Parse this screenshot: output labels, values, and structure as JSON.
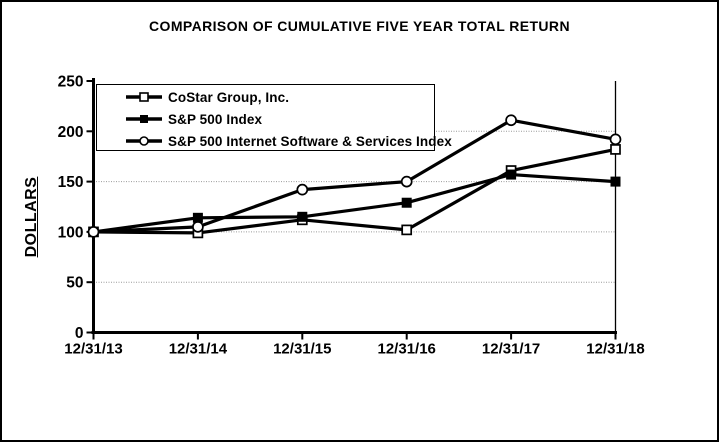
{
  "title": "COMPARISON OF CUMULATIVE FIVE YEAR TOTAL RETURN",
  "colors": {
    "line": "#000000",
    "grid": "#9a9a9a",
    "background": "#ffffff",
    "text": "#000000"
  },
  "chart_data": {
    "type": "line",
    "title": "COMPARISON OF CUMULATIVE FIVE YEAR TOTAL RETURN",
    "xlabel": "",
    "ylabel": "DOLLARS",
    "x": [
      "12/31/13",
      "12/31/14",
      "12/31/15",
      "12/31/16",
      "12/31/17",
      "12/31/18"
    ],
    "ylim": [
      0,
      250
    ],
    "y_ticks": [
      0,
      50,
      100,
      150,
      200,
      250
    ],
    "grid": "horizontal dotted gray",
    "legend_position": "top-left inside plot",
    "series": [
      {
        "name": "CoStar Group, Inc.",
        "marker": "open-square",
        "values": [
          100,
          99,
          112,
          102,
          161,
          182
        ]
      },
      {
        "name": "S&P 500 Index",
        "marker": "filled-square",
        "values": [
          100,
          114,
          115,
          129,
          157,
          150
        ]
      },
      {
        "name": "S&P 500 Internet Software & Services Index",
        "marker": "open-circle",
        "values": [
          100,
          105,
          142,
          150,
          211,
          192
        ]
      }
    ]
  }
}
